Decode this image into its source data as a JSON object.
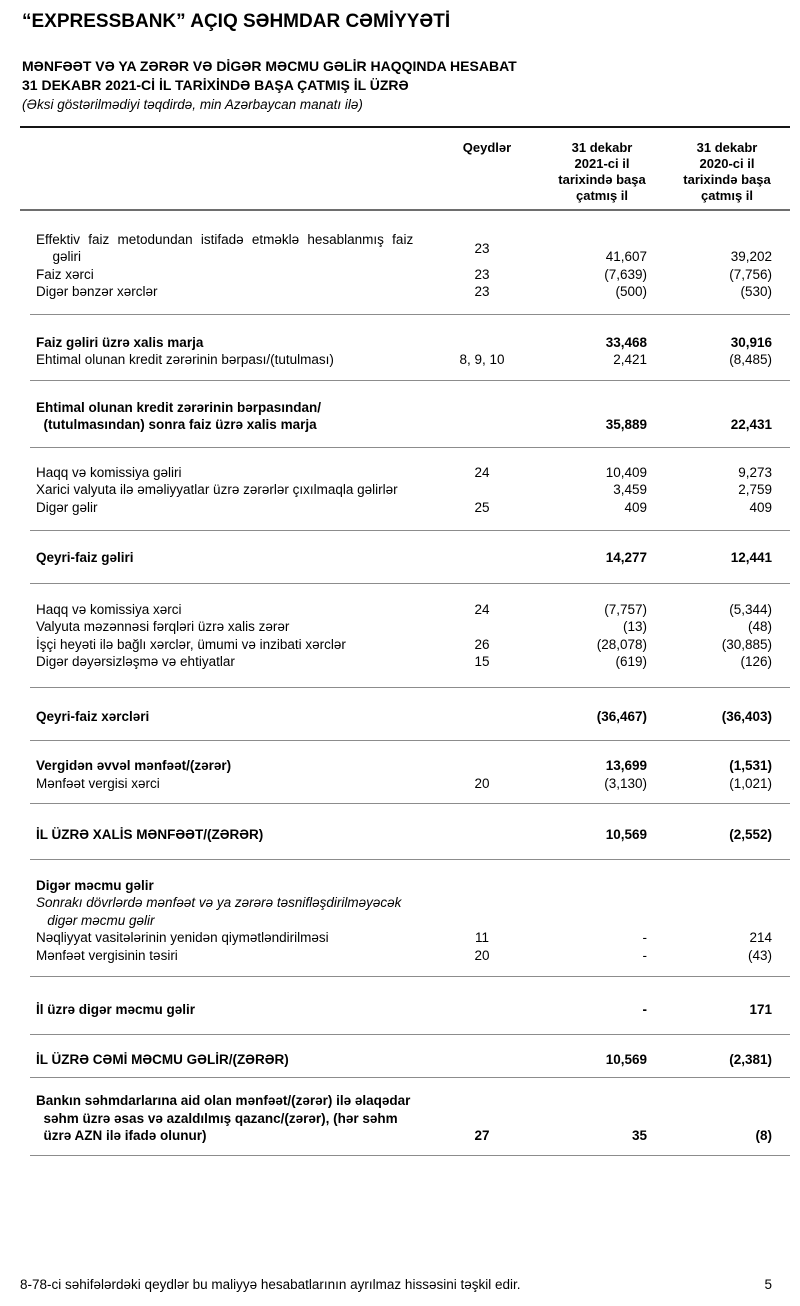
{
  "header": {
    "company": "“EXPRESSBANK” AÇIQ SƏHMDAR CƏMİYYƏTİ",
    "title": "MƏNFƏƏT VƏ YA ZƏRƏR VƏ DİGƏR MƏCMU GƏLİR HAQQINDA HESABAT\n31 DEKABR 2021-Cİ İL TARİXİNDƏ BAŞA ÇATMIŞ İL ÜZRƏ",
    "subtitle": "(Əksi göstərilmədiyi təqdirdə, min Azərbaycan manatı ilə)"
  },
  "table": {
    "columns": {
      "notes": "Qeydlər",
      "y2021": "31 dekabr\n2021-ci il\ntarixində başa\nçatmış il",
      "y2020": "31 dekabr\n2020-ci il\ntarixində başa\nçatmış il"
    },
    "rows": [
      {
        "label": "Effektiv faiz metodundan istifadə etməklə hesablanmış faiz\n  gəliri",
        "note": "23",
        "y2021": "41,607",
        "y2020": "39,202"
      },
      {
        "label": "Faiz xərci",
        "note": "23",
        "y2021": "(7,639)",
        "y2020": "(7,756)"
      },
      {
        "label": "Digər bənzər xərclər",
        "note": "23",
        "y2021": "(500)",
        "y2020": "(530)"
      },
      {
        "label": "Faiz gəliri üzrə xalis marja",
        "note": "",
        "y2021": "33,468",
        "y2020": "30,916"
      },
      {
        "label": "Ehtimal olunan kredit zərərinin bərpası/(tutulması)",
        "note": "8, 9, 10",
        "y2021": "2,421",
        "y2020": "(8,485)"
      },
      {
        "label": "Ehtimal olunan kredit zərərinin bərpasından/\n  (tutulmasından) sonra faiz üzrə xalis marja",
        "note": "",
        "y2021": "35,889",
        "y2020": "22,431"
      },
      {
        "label": "Haqq və komissiya gəliri",
        "note": "24",
        "y2021": "10,409",
        "y2020": "9,273"
      },
      {
        "label": "Xarici valyuta ilə əməliyyatlar üzrə zərərlər çıxılmaqla gəlirlər",
        "note": "",
        "y2021": "3,459",
        "y2020": "2,759"
      },
      {
        "label": "Digər gəlir",
        "note": "25",
        "y2021": "409",
        "y2020": "409"
      },
      {
        "label": "Qeyri-faiz gəliri",
        "note": "",
        "y2021": "14,277",
        "y2020": "12,441"
      },
      {
        "label": "Haqq və komissiya xərci",
        "note": "24",
        "y2021": "(7,757)",
        "y2020": "(5,344)"
      },
      {
        "label": "Valyuta məzənnəsi fərqləri üzrə xalis zərər",
        "note": "",
        "y2021": "(13)",
        "y2020": "(48)"
      },
      {
        "label": "İşçi heyəti ilə bağlı xərclər, ümumi və inzibati xərclər",
        "note": "26",
        "y2021": "(28,078)",
        "y2020": "(30,885)"
      },
      {
        "label": "Digər dəyərsizləşmə və ehtiyatlar",
        "note": "15",
        "y2021": "(619)",
        "y2020": "(126)"
      },
      {
        "label": "Qeyri-faiz xərcləri",
        "note": "",
        "y2021": "(36,467)",
        "y2020": "(36,403)"
      },
      {
        "label": "Vergidən əvvəl mənfəət/(zərər)",
        "note": "",
        "y2021": "13,699",
        "y2020": "(1,531)"
      },
      {
        "label": "Mənfəət vergisi xərci",
        "note": "20",
        "y2021": "(3,130)",
        "y2020": "(1,021)"
      },
      {
        "label": "İL ÜZRƏ XALİS MƏNFƏƏT/(ZƏRƏR)",
        "note": "",
        "y2021": "10,569",
        "y2020": "(2,552)"
      },
      {
        "label": "Digər məcmu gəlir",
        "note": "",
        "y2021": "",
        "y2020": ""
      },
      {
        "label": "Sonrakı dövrlərdə mənfəət və ya zərərə təsnifləşdirilməyəcək\n   digər məcmu gəlir",
        "note": "",
        "y2021": "",
        "y2020": ""
      },
      {
        "label": "Nəqliyyat vasitələrinin yenidən qiymətləndirilməsi",
        "note": "11",
        "y2021": "-",
        "y2020": "214"
      },
      {
        "label": "Mənfəət vergisinin təsiri",
        "note": "20",
        "y2021": "-",
        "y2020": "(43)"
      },
      {
        "label": "İl üzrə digər məcmu gəlir",
        "note": "",
        "y2021": "-",
        "y2020": "171"
      },
      {
        "label": "İL ÜZRƏ CƏMİ MƏCMU GƏLİR/(ZƏRƏR)",
        "note": "",
        "y2021": "10,569",
        "y2020": "(2,381)"
      },
      {
        "label": "Bankın səhmdarlarına aid olan mənfəət/(zərər) ilə əlaqədar\n  səhm üzrə əsas və azaldılmış qazanc/(zərər), (hər səhm\n  üzrə AZN ilə ifadə olunur)",
        "note": "27",
        "y2021": "35",
        "y2020": "(8)"
      }
    ]
  },
  "footer": {
    "text": "8-78-ci səhifələrdəki qeydlər bu maliyyə hesabatlarının ayrılmaz hissəsini təşkil edir.",
    "page": "5"
  }
}
